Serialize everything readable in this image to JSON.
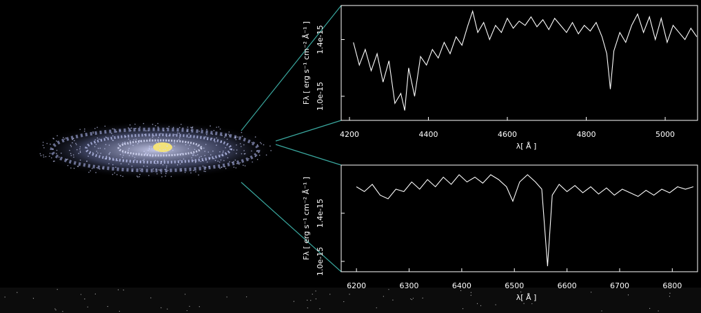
{
  "chart_data": [
    {
      "type": "line",
      "y_label": "Fλ [ erg s⁻¹ cm⁻² Å⁻¹ ]",
      "x_label": "λ[ Å ]",
      "xlim": [
        4179,
        5082
      ],
      "xticks": [
        4200,
        4400,
        4600,
        4800,
        5000
      ],
      "ylim": [
        8.3e-16,
        1.64e-15
      ],
      "yticks": [
        {
          "value": 1e-15,
          "label": "1.0e-15"
        },
        {
          "value": 1.4e-15,
          "label": "1.4e-15"
        }
      ],
      "color": "#ffffff",
      "x": [
        4210,
        4225,
        4240,
        4255,
        4270,
        4285,
        4300,
        4315,
        4330,
        4340,
        4350,
        4365,
        4380,
        4395,
        4410,
        4425,
        4440,
        4455,
        4470,
        4485,
        4500,
        4512,
        4525,
        4540,
        4555,
        4570,
        4585,
        4600,
        4615,
        4630,
        4645,
        4660,
        4675,
        4690,
        4705,
        4720,
        4735,
        4750,
        4765,
        4780,
        4795,
        4810,
        4825,
        4840,
        4852,
        4861,
        4870,
        4885,
        4900,
        4915,
        4930,
        4945,
        4960,
        4975,
        4990,
        5005,
        5020,
        5035,
        5050,
        5065,
        5080
      ],
      "values": [
        1.38e-15,
        1.22e-15,
        1.33e-15,
        1.18e-15,
        1.3e-15,
        1.1e-15,
        1.25e-15,
        9.5e-16,
        1.02e-15,
        9e-16,
        1.2e-15,
        1e-15,
        1.28e-15,
        1.22e-15,
        1.33e-15,
        1.27e-15,
        1.38e-15,
        1.3e-15,
        1.42e-15,
        1.36e-15,
        1.5e-15,
        1.6e-15,
        1.45e-15,
        1.52e-15,
        1.4e-15,
        1.5e-15,
        1.45e-15,
        1.55e-15,
        1.48e-15,
        1.53e-15,
        1.5e-15,
        1.56e-15,
        1.49e-15,
        1.54e-15,
        1.47e-15,
        1.55e-15,
        1.5e-15,
        1.45e-15,
        1.52e-15,
        1.44e-15,
        1.5e-15,
        1.46e-15,
        1.52e-15,
        1.42e-15,
        1.3e-15,
        1.05e-15,
        1.32e-15,
        1.45e-15,
        1.38e-15,
        1.5e-15,
        1.58e-15,
        1.45e-15,
        1.56e-15,
        1.4e-15,
        1.55e-15,
        1.38e-15,
        1.5e-15,
        1.45e-15,
        1.4e-15,
        1.48e-15,
        1.42e-15
      ]
    },
    {
      "type": "line",
      "y_label": "Fλ [ erg s⁻¹ cm⁻² Å⁻¹ ]",
      "x_label": "λ[ Å ]",
      "xlim": [
        6171,
        6848
      ],
      "xticks": [
        6200,
        6300,
        6400,
        6500,
        6600,
        6700,
        6800
      ],
      "ylim": [
        9.14e-16,
        1.8e-15
      ],
      "yticks": [
        {
          "value": 1e-15,
          "label": "1.0e-15"
        },
        {
          "value": 1.4e-15,
          "label": "1.4e-15"
        }
      ],
      "color": "#ffffff",
      "x": [
        6200,
        6215,
        6230,
        6245,
        6260,
        6275,
        6290,
        6305,
        6320,
        6335,
        6350,
        6365,
        6380,
        6395,
        6410,
        6425,
        6440,
        6455,
        6470,
        6485,
        6497,
        6510,
        6525,
        6540,
        6552,
        6563,
        6572,
        6585,
        6600,
        6615,
        6630,
        6645,
        6660,
        6675,
        6690,
        6705,
        6720,
        6735,
        6750,
        6765,
        6780,
        6795,
        6810,
        6825,
        6840
      ],
      "values": [
        1.62e-15,
        1.58e-15,
        1.64e-15,
        1.55e-15,
        1.52e-15,
        1.6e-15,
        1.58e-15,
        1.66e-15,
        1.6e-15,
        1.68e-15,
        1.62e-15,
        1.7e-15,
        1.64e-15,
        1.72e-15,
        1.66e-15,
        1.7e-15,
        1.65e-15,
        1.72e-15,
        1.68e-15,
        1.62e-15,
        1.5e-15,
        1.66e-15,
        1.72e-15,
        1.66e-15,
        1.6e-15,
        9.6e-16,
        1.55e-15,
        1.64e-15,
        1.58e-15,
        1.63e-15,
        1.57e-15,
        1.62e-15,
        1.56e-15,
        1.61e-15,
        1.55e-15,
        1.6e-15,
        1.57e-15,
        1.54e-15,
        1.59e-15,
        1.55e-15,
        1.6e-15,
        1.57e-15,
        1.62e-15,
        1.6e-15,
        1.62e-15
      ]
    }
  ]
}
